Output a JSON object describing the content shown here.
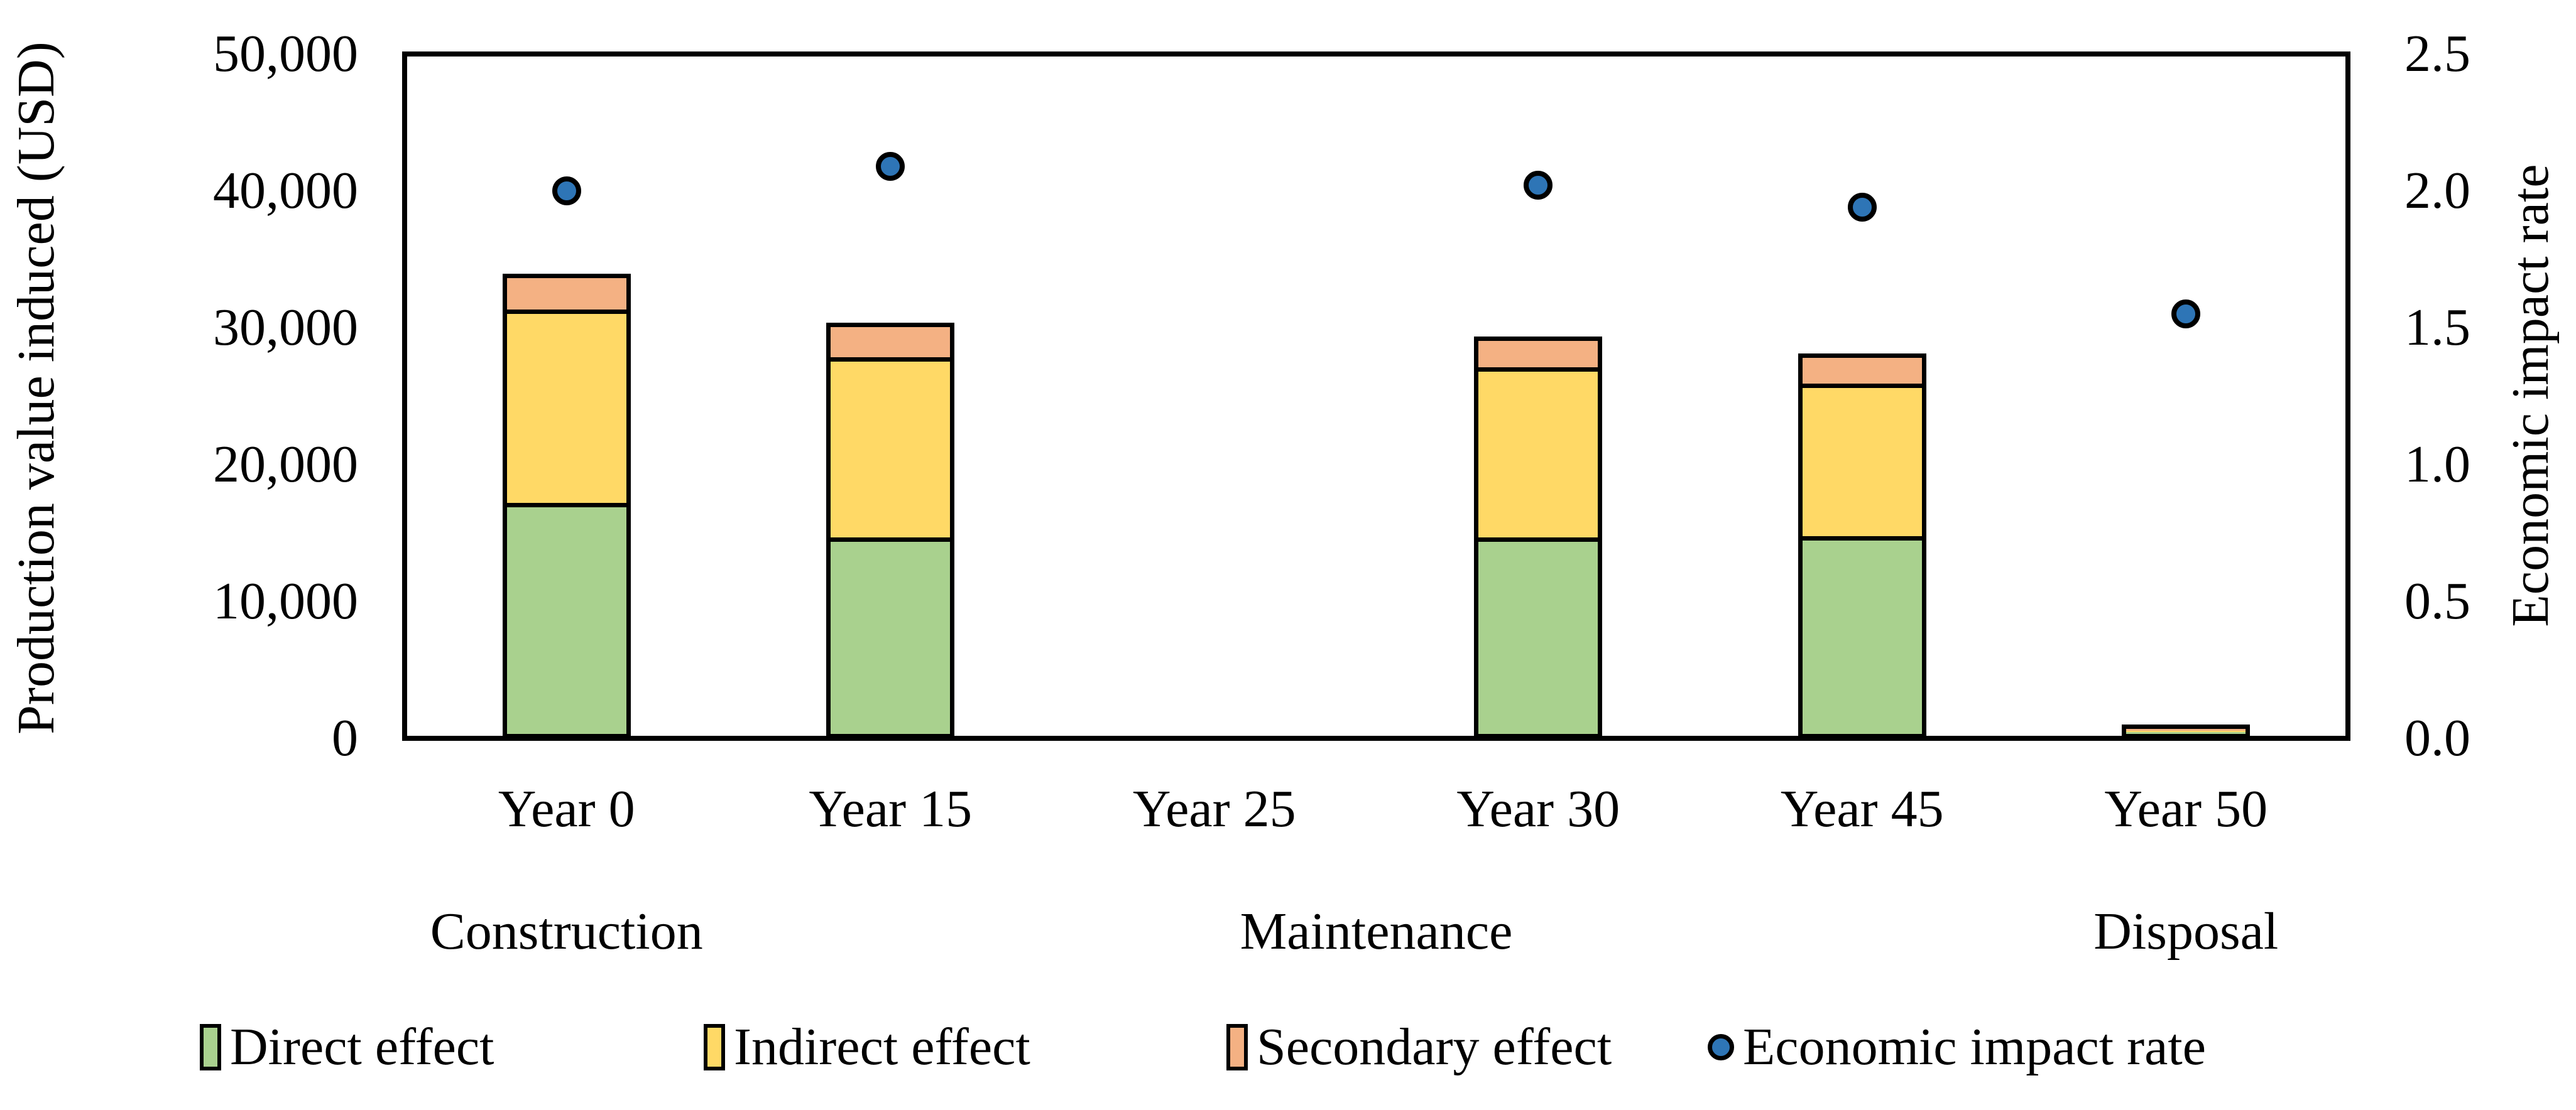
{
  "figure": {
    "background": "#ffffff",
    "text_color": "#000000"
  },
  "chart_data": {
    "type": "bar",
    "subtype": "stacked-bar-with-scatter-overlay",
    "categories": [
      "Year 0",
      "Year 15",
      "Year 25",
      "Year 30",
      "Year 45",
      "Year 50"
    ],
    "series": [
      {
        "name": "Direct effect",
        "color": "#A9D18E",
        "values": [
          17200,
          14650,
          0,
          14700,
          14800,
          400
        ]
      },
      {
        "name": "Indirect effect",
        "color": "#FFD966",
        "values": [
          14350,
          13400,
          0,
          12650,
          11350,
          250
        ]
      },
      {
        "name": "Secondary effect",
        "color": "#F4B183",
        "values": [
          2400,
          2300,
          0,
          2000,
          1950,
          350
        ]
      }
    ],
    "scatter_series": {
      "name": "Economic impact rate",
      "color": "#2E75B6",
      "values": [
        2.0,
        2.09,
        null,
        2.02,
        1.94,
        1.55
      ]
    },
    "left_axis": {
      "title": "Production value induced (USD)",
      "min": 0,
      "max": 50000,
      "tick_labels": [
        "50,000",
        "40,000",
        "30,000",
        "20,000",
        "10,000",
        "0"
      ],
      "tick_values": [
        50000,
        40000,
        30000,
        20000,
        10000,
        0
      ]
    },
    "right_axis": {
      "title": "Economic impact rate",
      "min": 0,
      "max": 2.5,
      "tick_labels": [
        "2.5",
        "2.0",
        "1.5",
        "1.0",
        "0.5",
        "0.0"
      ],
      "tick_values": [
        2.5,
        2.0,
        1.5,
        1.0,
        0.5,
        0.0
      ]
    },
    "phase_groups": [
      {
        "label": "Construction",
        "category_indexes": [
          0
        ]
      },
      {
        "label": "Maintenance",
        "category_indexes": [
          1,
          2,
          3,
          4
        ]
      },
      {
        "label": "Disposal",
        "category_indexes": [
          5
        ]
      }
    ],
    "grid": "off",
    "legend_position": "bottom",
    "legend": [
      {
        "label": "Direct effect",
        "marker": "rect",
        "color": "#A9D18E"
      },
      {
        "label": "Indirect effect",
        "marker": "rect",
        "color": "#FFD966"
      },
      {
        "label": "Secondary effect",
        "marker": "rect",
        "color": "#F4B183"
      },
      {
        "label": "Economic impact rate",
        "marker": "dot",
        "color": "#2E75B6"
      }
    ],
    "outline_color": "#000000"
  }
}
